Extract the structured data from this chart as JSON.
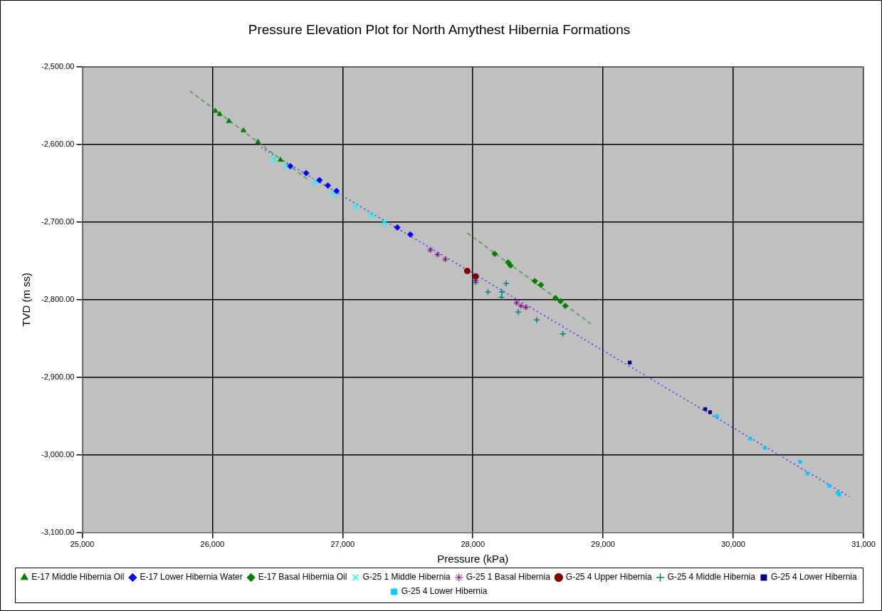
{
  "chart_data": {
    "type": "scatter",
    "title": "Pressure Elevation Plot for North Amythest Hibernia Formations",
    "xlabel": "Pressure (kPa)",
    "ylabel": "TVD (m ss)",
    "xlim": [
      25000,
      31000
    ],
    "ylim": [
      -3100,
      -2500
    ],
    "xticks": [
      {
        "value": 25000,
        "label": "25,000"
      },
      {
        "value": 26000,
        "label": "26,000"
      },
      {
        "value": 27000,
        "label": "27,000"
      },
      {
        "value": 28000,
        "label": "28,000"
      },
      {
        "value": 29000,
        "label": "29,000"
      },
      {
        "value": 30000,
        "label": "30,000"
      },
      {
        "value": 31000,
        "label": "31,000"
      }
    ],
    "yticks": [
      {
        "value": -2500,
        "label": "-2,500.00"
      },
      {
        "value": -2600,
        "label": "-2,600.00"
      },
      {
        "value": -2700,
        "label": "-2,700.00"
      },
      {
        "value": -2800,
        "label": "-2,800.00"
      },
      {
        "value": -2900,
        "label": "-2,900.00"
      },
      {
        "value": -3000,
        "label": "-3,000.00"
      },
      {
        "value": -3100,
        "label": "-3,100.00"
      }
    ],
    "grid": true,
    "legend": "bottom",
    "series": [
      {
        "type": "line",
        "color": "#4c9a4c",
        "line_style": "dashed",
        "marker": "none",
        "x": [
          25826,
          26738
        ],
        "values": [
          -2531,
          -2646
        ]
      },
      {
        "type": "line",
        "color": "#4c9a4c",
        "line_style": "dashed",
        "marker": "none",
        "x": [
          27957,
          28906
        ],
        "values": [
          -2714,
          -2831
        ]
      },
      {
        "type": "line",
        "color": "#3333ff",
        "line_style": "dotted",
        "marker": "none",
        "x": [
          26374,
          30893
        ],
        "values": [
          -2604,
          -3054
        ]
      },
      {
        "name": "E-17 Middle Hibernia Oil",
        "color": "#008000",
        "marker": "triangle",
        "x": [
          26024,
          26056,
          26127,
          26239,
          26350,
          26523
        ],
        "values": [
          -2557,
          -2561,
          -2570,
          -2582,
          -2597,
          -2620
        ]
      },
      {
        "name": "E-17 Lower Hibernia Water",
        "color": "#0000ff",
        "marker": "diamond",
        "x": [
          26598,
          26720,
          26822,
          26887,
          26953,
          27420,
          27520
        ],
        "values": [
          -2628,
          -2637,
          -2646,
          -2653,
          -2660,
          -2707,
          -2716
        ]
      },
      {
        "name": "E-17 Basal Hibernia Oil",
        "color": "#008000",
        "marker": "diamond",
        "x": [
          28168,
          28271,
          28289,
          28476,
          28523,
          28635,
          28673,
          28710
        ],
        "values": [
          -2741,
          -2752,
          -2756,
          -2776,
          -2781,
          -2798,
          -2802,
          -2808
        ]
      },
      {
        "name": "G-25 1 Middle Hibernia",
        "color": "#00ffff",
        "marker": "x",
        "x": [
          26471,
          26574,
          26794,
          26934,
          27103,
          27220,
          27321
        ],
        "values": [
          -2619,
          -2628,
          -2648,
          -2664,
          -2680,
          -2691,
          -2701
        ]
      },
      {
        "name": "G-25 1 Basal Hibernia",
        "color": "#800080",
        "x": [
          27673,
          27729,
          27788,
          28022,
          28336,
          28370,
          28407
        ],
        "values": [
          -2736,
          -2742,
          -2748,
          -2775,
          -2804,
          -2808,
          -2810
        ]
      },
      {
        "name": "G-25 4 Upper Hibernia",
        "color": "#800000",
        "marker": "circle",
        "x": [
          27957,
          28022
        ],
        "values": [
          -2763,
          -2770
        ]
      },
      {
        "name": "G-25 4 Middle Hibernia",
        "color": "#008080",
        "marker": "cross",
        "x": [
          28022,
          28116,
          28256,
          28224,
          28220,
          28349,
          28491,
          28691
        ],
        "values": [
          -2778,
          -2790,
          -2779,
          -2790,
          -2797,
          -2816,
          -2826,
          -2844
        ]
      },
      {
        "name": "G-25 4 Lower Hibernia",
        "color": "#000080",
        "marker": "square",
        "x": [
          29205,
          29785,
          29822
        ],
        "values": [
          -2881,
          -2941,
          -2945
        ]
      },
      {
        "name": "G-25 4 Lower Hibernia",
        "color": "#00ccff",
        "marker": "square",
        "x": [
          29874,
          30130,
          30243,
          30513,
          30570,
          30738,
          30803,
          30813
        ],
        "values": [
          -2950,
          -2979,
          -2991,
          -3009,
          -3024,
          -3040,
          -3049,
          -3051
        ]
      }
    ]
  }
}
